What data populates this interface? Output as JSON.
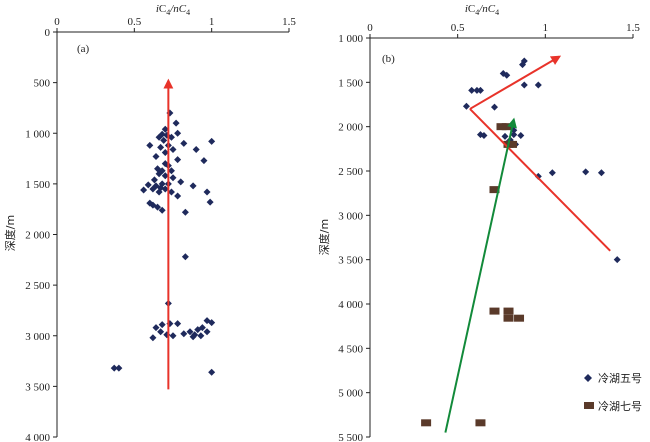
{
  "chart_data": [
    {
      "type": "scatter",
      "panel_label": "(a)",
      "x_label_html": [
        "i",
        "C",
        "4",
        "/nC",
        "4"
      ],
      "x_label_text": "iC4/nC4",
      "y_label": "深度/m",
      "xlim": [
        0,
        1.5
      ],
      "ylim": [
        0,
        4000
      ],
      "x_ticks": [
        0,
        0.5,
        1,
        1.5
      ],
      "x_tick_labels": [
        "0",
        "0.5",
        "1",
        "1.5"
      ],
      "y_ticks": [
        0,
        500,
        1000,
        1500,
        2000,
        2500,
        3000,
        3500,
        4000
      ],
      "y_tick_labels": [
        "0",
        "500",
        "1 000",
        "1 500",
        "2 000",
        "2 500",
        "3 000",
        "3 500",
        "4 000"
      ],
      "series": [
        {
          "marker": "diamond",
          "color": "#1f2a5c",
          "points": [
            [
              0.73,
              800
            ],
            [
              0.77,
              900
            ],
            [
              0.7,
              960
            ],
            [
              0.78,
              1000
            ],
            [
              0.68,
              1010
            ],
            [
              0.71,
              1020
            ],
            [
              0.74,
              1040
            ],
            [
              0.66,
              1040
            ],
            [
              0.69,
              1070
            ],
            [
              1.0,
              1080
            ],
            [
              0.82,
              1100
            ],
            [
              0.6,
              1120
            ],
            [
              0.72,
              1120
            ],
            [
              0.67,
              1140
            ],
            [
              0.75,
              1160
            ],
            [
              0.7,
              1190
            ],
            [
              0.9,
              1160
            ],
            [
              0.64,
              1230
            ],
            [
              0.78,
              1260
            ],
            [
              0.95,
              1270
            ],
            [
              0.7,
              1300
            ],
            [
              0.72,
              1320
            ],
            [
              0.65,
              1350
            ],
            [
              0.68,
              1370
            ],
            [
              0.74,
              1370
            ],
            [
              0.66,
              1400
            ],
            [
              0.7,
              1420
            ],
            [
              0.75,
              1440
            ],
            [
              0.63,
              1460
            ],
            [
              0.8,
              1480
            ],
            [
              0.68,
              1500
            ],
            [
              0.72,
              1500
            ],
            [
              0.59,
              1510
            ],
            [
              0.64,
              1520
            ],
            [
              0.88,
              1520
            ],
            [
              0.67,
              1540
            ],
            [
              0.7,
              1550
            ],
            [
              0.62,
              1550
            ],
            [
              0.56,
              1560
            ],
            [
              0.66,
              1580
            ],
            [
              0.74,
              1580
            ],
            [
              0.97,
              1580
            ],
            [
              0.78,
              1620
            ],
            [
              0.6,
              1690
            ],
            [
              0.99,
              1680
            ],
            [
              0.62,
              1710
            ],
            [
              0.65,
              1730
            ],
            [
              0.68,
              1760
            ],
            [
              0.83,
              1780
            ],
            [
              0.83,
              2220
            ],
            [
              0.72,
              2680
            ],
            [
              0.97,
              2850
            ],
            [
              0.73,
              2880
            ],
            [
              0.78,
              2880
            ],
            [
              0.68,
              2890
            ],
            [
              1.0,
              2870
            ],
            [
              0.64,
              2920
            ],
            [
              0.94,
              2920
            ],
            [
              0.91,
              2940
            ],
            [
              0.67,
              2960
            ],
            [
              0.86,
              2960
            ],
            [
              0.82,
              2980
            ],
            [
              0.97,
              2960
            ],
            [
              0.71,
              2990
            ],
            [
              0.89,
              2990
            ],
            [
              0.75,
              3000
            ],
            [
              0.93,
              3000
            ],
            [
              0.62,
              3020
            ],
            [
              0.88,
              3010
            ],
            [
              0.37,
              3320
            ],
            [
              0.4,
              3320
            ],
            [
              1.0,
              3360
            ]
          ]
        }
      ],
      "arrows": [
        {
          "color": "#e8332a",
          "from": [
            0.72,
            3530
          ],
          "to": [
            0.72,
            480
          ]
        }
      ]
    },
    {
      "type": "scatter",
      "panel_label": "(b)",
      "x_label_html": [
        "i",
        "C",
        "4",
        "/nC",
        "4"
      ],
      "x_label_text": "iC4/nC4",
      "y_label": "深度/m",
      "xlim": [
        0,
        1.5
      ],
      "ylim": [
        1000,
        5500
      ],
      "x_ticks": [
        0,
        0.5,
        1,
        1.5
      ],
      "x_tick_labels": [
        "0",
        "0.5",
        "1",
        "1.5"
      ],
      "y_ticks": [
        1000,
        1500,
        2000,
        2500,
        3000,
        3500,
        4000,
        4500,
        5000,
        5500
      ],
      "y_tick_labels": [
        "1 000",
        "1 500",
        "2 000",
        "2 500",
        "3 000",
        "3 500",
        "4 000",
        "4 500",
        "5 000",
        "5 500"
      ],
      "legend": [
        {
          "label": "冷湖五号",
          "marker": "diamond",
          "color": "#1f2a5c"
        },
        {
          "label": "冷湖七号",
          "marker": "square",
          "color": "#5a3a2a"
        }
      ],
      "legend_position": "bottom-right",
      "series": [
        {
          "name": "冷湖五号",
          "marker": "diamond",
          "color": "#1f2a5c",
          "points": [
            [
              0.88,
              1260
            ],
            [
              0.87,
              1300
            ],
            [
              0.76,
              1400
            ],
            [
              0.78,
              1420
            ],
            [
              0.88,
              1530
            ],
            [
              0.96,
              1530
            ],
            [
              0.58,
              1590
            ],
            [
              0.61,
              1590
            ],
            [
              0.63,
              1590
            ],
            [
              0.55,
              1770
            ],
            [
              0.71,
              1780
            ],
            [
              0.82,
              2040
            ],
            [
              0.63,
              2090
            ],
            [
              0.65,
              2100
            ],
            [
              0.77,
              2110
            ],
            [
              0.82,
              2090
            ],
            [
              0.86,
              2100
            ],
            [
              0.8,
              2150
            ],
            [
              0.78,
              2190
            ],
            [
              0.83,
              2200
            ],
            [
              0.96,
              2560
            ],
            [
              1.04,
              2520
            ],
            [
              1.23,
              2510
            ],
            [
              1.32,
              2520
            ],
            [
              1.41,
              3500
            ]
          ]
        },
        {
          "name": "冷湖七号",
          "marker": "square",
          "color": "#5a3a2a",
          "points": [
            [
              0.75,
              2000
            ],
            [
              0.78,
              2000
            ],
            [
              0.79,
              2200
            ],
            [
              0.81,
              2200
            ],
            [
              0.71,
              2710
            ],
            [
              0.71,
              4080
            ],
            [
              0.79,
              4080
            ],
            [
              0.79,
              4160
            ],
            [
              0.85,
              4160
            ],
            [
              0.32,
              5340
            ],
            [
              0.63,
              5340
            ]
          ]
        }
      ],
      "arrows": [
        {
          "color": "#e8332a",
          "from": [
            1.37,
            3400
          ],
          "to": [
            0.57,
            1800
          ],
          "head": false
        },
        {
          "color": "#e8332a",
          "from": [
            0.57,
            1800
          ],
          "to": [
            1.08,
            1210
          ],
          "head": true
        },
        {
          "color": "#128a3a",
          "from": [
            0.43,
            5450
          ],
          "to": [
            0.82,
            1920
          ],
          "head": true
        }
      ]
    }
  ]
}
